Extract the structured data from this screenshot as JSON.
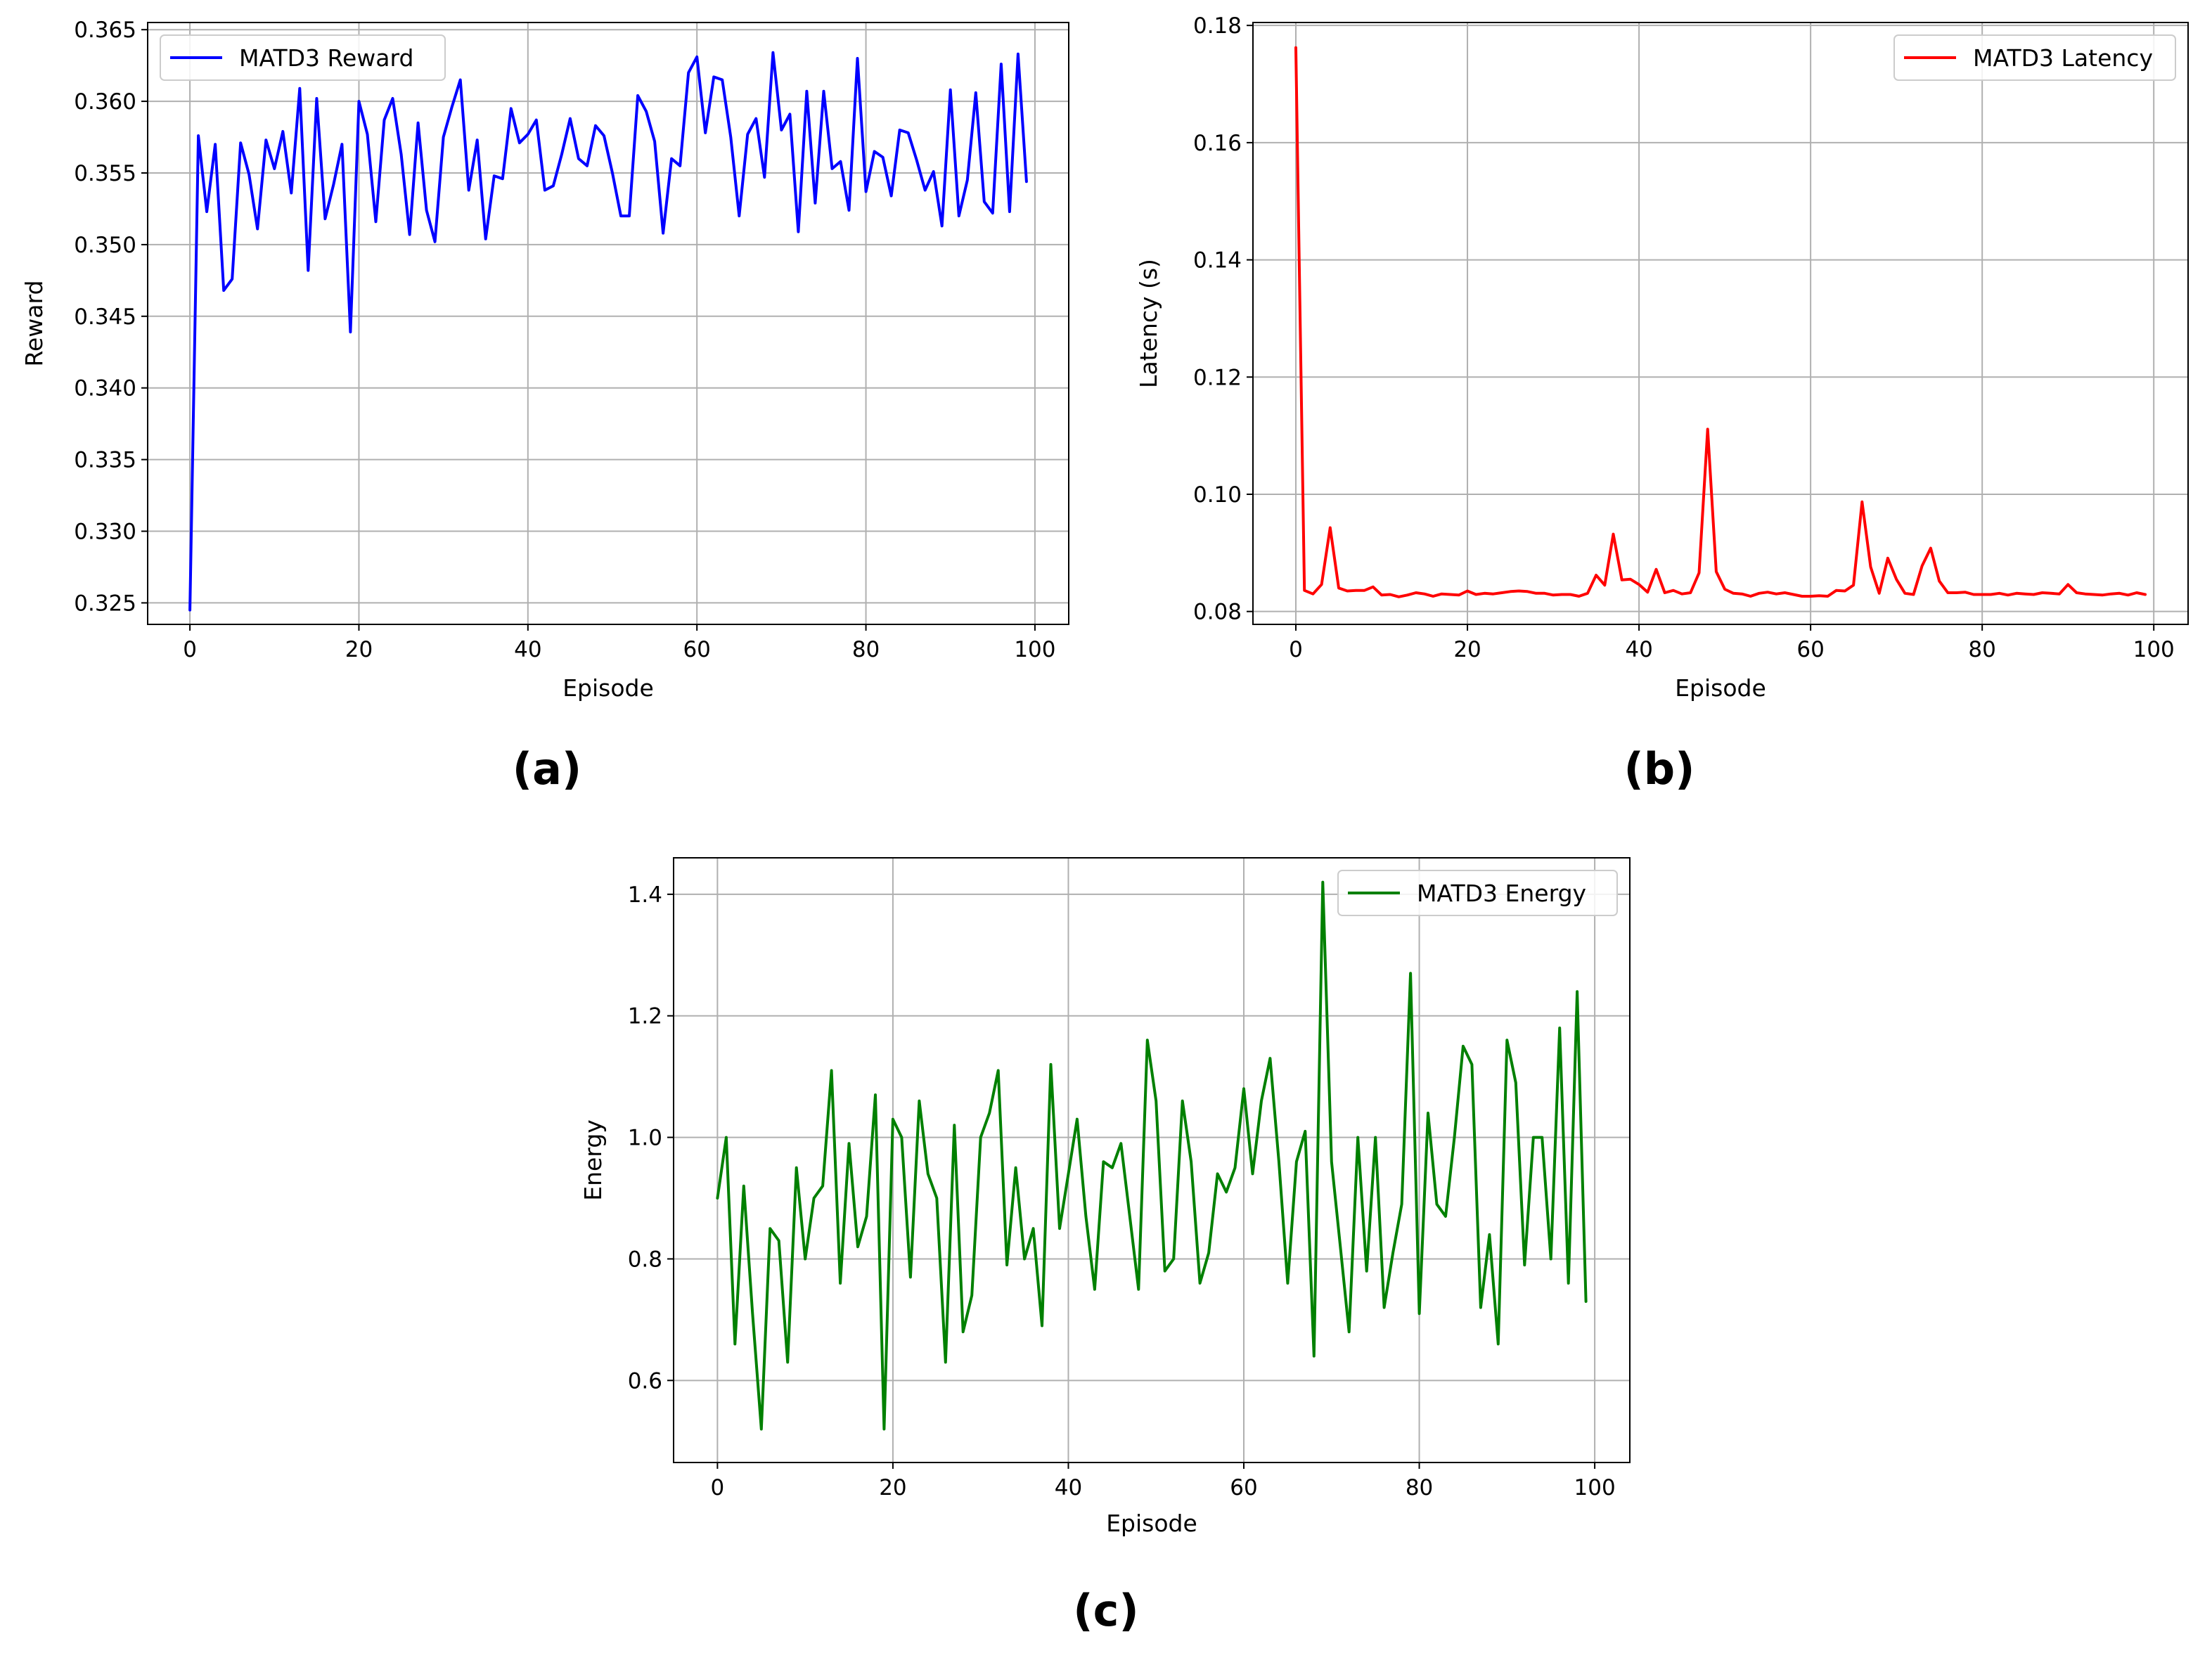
{
  "chart_data": [
    {
      "id": "a",
      "type": "line",
      "caption": "(a)",
      "title": "",
      "xlabel": "Episode",
      "ylabel": "Reward",
      "xlim": [
        -5,
        104
      ],
      "ylim": [
        0.3235,
        0.3655
      ],
      "xticks": [
        0,
        20,
        40,
        60,
        80,
        100
      ],
      "xtick_labels": [
        "0",
        "20",
        "40",
        "60",
        "80",
        "100"
      ],
      "yticks": [
        0.325,
        0.33,
        0.335,
        0.34,
        0.345,
        0.35,
        0.355,
        0.36,
        0.365
      ],
      "ytick_labels": [
        "0.325",
        "0.330",
        "0.335",
        "0.340",
        "0.345",
        "0.350",
        "0.355",
        "0.360",
        "0.365"
      ],
      "grid": true,
      "legend_position": "upper-left",
      "series": [
        {
          "name": "MATD3 Reward",
          "color": "#0000ff",
          "x_start": 0,
          "values": [
            0.3245,
            0.3576,
            0.3523,
            0.357,
            0.3468,
            0.3476,
            0.3571,
            0.3549,
            0.3511,
            0.3573,
            0.3553,
            0.3579,
            0.3536,
            0.3609,
            0.3482,
            0.3602,
            0.3518,
            0.3542,
            0.357,
            0.3439,
            0.36,
            0.3577,
            0.3516,
            0.3587,
            0.3602,
            0.3563,
            0.3507,
            0.3585,
            0.3524,
            0.3502,
            0.3575,
            0.3596,
            0.3615,
            0.3538,
            0.3573,
            0.3504,
            0.3548,
            0.3546,
            0.3595,
            0.3571,
            0.3577,
            0.3587,
            0.3538,
            0.3541,
            0.3563,
            0.3588,
            0.356,
            0.3555,
            0.3583,
            0.3576,
            0.355,
            0.352,
            0.352,
            0.3604,
            0.3593,
            0.3572,
            0.3508,
            0.356,
            0.3555,
            0.362,
            0.3631,
            0.3578,
            0.3617,
            0.3615,
            0.3575,
            0.352,
            0.3577,
            0.3588,
            0.3547,
            0.3634,
            0.358,
            0.3591,
            0.3509,
            0.3607,
            0.3529,
            0.3607,
            0.3553,
            0.3558,
            0.3524,
            0.363,
            0.3537,
            0.3565,
            0.3561,
            0.3534,
            0.358,
            0.3578,
            0.3559,
            0.3538,
            0.3551,
            0.3513,
            0.3608,
            0.352,
            0.3545,
            0.3606,
            0.353,
            0.3522,
            0.3626,
            0.3523,
            0.3633,
            0.3544
          ]
        }
      ]
    },
    {
      "id": "b",
      "type": "line",
      "caption": "(b)",
      "title": "",
      "xlabel": "Episode",
      "ylabel": "Latency (s)",
      "xlim": [
        -5,
        104
      ],
      "ylim": [
        0.0778,
        0.1805
      ],
      "xticks": [
        0,
        20,
        40,
        60,
        80,
        100
      ],
      "xtick_labels": [
        "0",
        "20",
        "40",
        "60",
        "80",
        "100"
      ],
      "yticks": [
        0.08,
        0.1,
        0.12,
        0.14,
        0.16,
        0.18
      ],
      "ytick_labels": [
        "0.08",
        "0.10",
        "0.12",
        "0.14",
        "0.16",
        "0.18"
      ],
      "grid": true,
      "legend_position": "upper-right",
      "series": [
        {
          "name": "MATD3 Latency",
          "color": "#ff0000",
          "x_start": 0,
          "values": [
            0.1762,
            0.0836,
            0.083,
            0.0846,
            0.0943,
            0.084,
            0.0835,
            0.0836,
            0.0836,
            0.0842,
            0.0828,
            0.0829,
            0.0825,
            0.0828,
            0.0832,
            0.083,
            0.0826,
            0.083,
            0.0829,
            0.0828,
            0.0835,
            0.0829,
            0.0831,
            0.083,
            0.0832,
            0.0834,
            0.0835,
            0.0834,
            0.0831,
            0.0831,
            0.0828,
            0.0829,
            0.0829,
            0.0826,
            0.0831,
            0.0862,
            0.0845,
            0.0932,
            0.0854,
            0.0855,
            0.0846,
            0.0833,
            0.0872,
            0.0832,
            0.0836,
            0.083,
            0.0832,
            0.0866,
            0.1111,
            0.0868,
            0.0838,
            0.0831,
            0.083,
            0.0826,
            0.0831,
            0.0833,
            0.083,
            0.0832,
            0.0829,
            0.0826,
            0.0826,
            0.0827,
            0.0826,
            0.0836,
            0.0835,
            0.0845,
            0.0987,
            0.0876,
            0.0831,
            0.0891,
            0.0855,
            0.0831,
            0.0829,
            0.0878,
            0.0908,
            0.0852,
            0.0832,
            0.0832,
            0.0833,
            0.0829,
            0.0829,
            0.0829,
            0.0831,
            0.0828,
            0.0831,
            0.083,
            0.0829,
            0.0832,
            0.0831,
            0.083,
            0.0846,
            0.0832,
            0.083,
            0.0829,
            0.0828,
            0.083,
            0.0831,
            0.0828,
            0.0832,
            0.0829
          ]
        }
      ]
    },
    {
      "id": "c",
      "type": "line",
      "caption": "(c)",
      "title": "",
      "xlabel": "Episode",
      "ylabel": "Energy",
      "xlim": [
        -5,
        104
      ],
      "ylim": [
        0.465,
        1.46
      ],
      "xticks": [
        0,
        20,
        40,
        60,
        80,
        100
      ],
      "xtick_labels": [
        "0",
        "20",
        "40",
        "60",
        "80",
        "100"
      ],
      "yticks": [
        0.6,
        0.8,
        1.0,
        1.2,
        1.4
      ],
      "ytick_labels": [
        "0.6",
        "0.8",
        "1.0",
        "1.2",
        "1.4"
      ],
      "grid": true,
      "legend_position": "upper-right",
      "series": [
        {
          "name": "MATD3 Energy",
          "color": "#008000",
          "x_start": 0,
          "values": [
            0.9,
            1.0,
            0.66,
            0.92,
            0.71,
            0.52,
            0.85,
            0.83,
            0.63,
            0.95,
            0.8,
            0.9,
            0.92,
            1.11,
            0.76,
            0.99,
            0.82,
            0.87,
            1.07,
            0.52,
            1.03,
            1.0,
            0.77,
            1.06,
            0.94,
            0.9,
            0.63,
            1.02,
            0.68,
            0.74,
            1.0,
            1.04,
            1.11,
            0.79,
            0.95,
            0.8,
            0.85,
            0.69,
            1.12,
            0.85,
            0.94,
            1.03,
            0.87,
            0.75,
            0.96,
            0.95,
            0.99,
            0.87,
            0.75,
            1.16,
            1.06,
            0.78,
            0.8,
            1.06,
            0.96,
            0.76,
            0.81,
            0.94,
            0.91,
            0.95,
            1.08,
            0.94,
            1.06,
            1.13,
            0.96,
            0.76,
            0.96,
            1.01,
            0.64,
            1.42,
            0.96,
            0.82,
            0.68,
            1.0,
            0.78,
            1.0,
            0.72,
            0.81,
            0.89,
            1.27,
            0.71,
            1.04,
            0.89,
            0.87,
            1.0,
            1.15,
            1.12,
            0.72,
            0.84,
            0.66,
            1.16,
            1.09,
            0.79,
            1.0,
            1.0,
            0.8,
            1.18,
            0.76,
            1.24,
            0.73
          ]
        }
      ]
    }
  ]
}
